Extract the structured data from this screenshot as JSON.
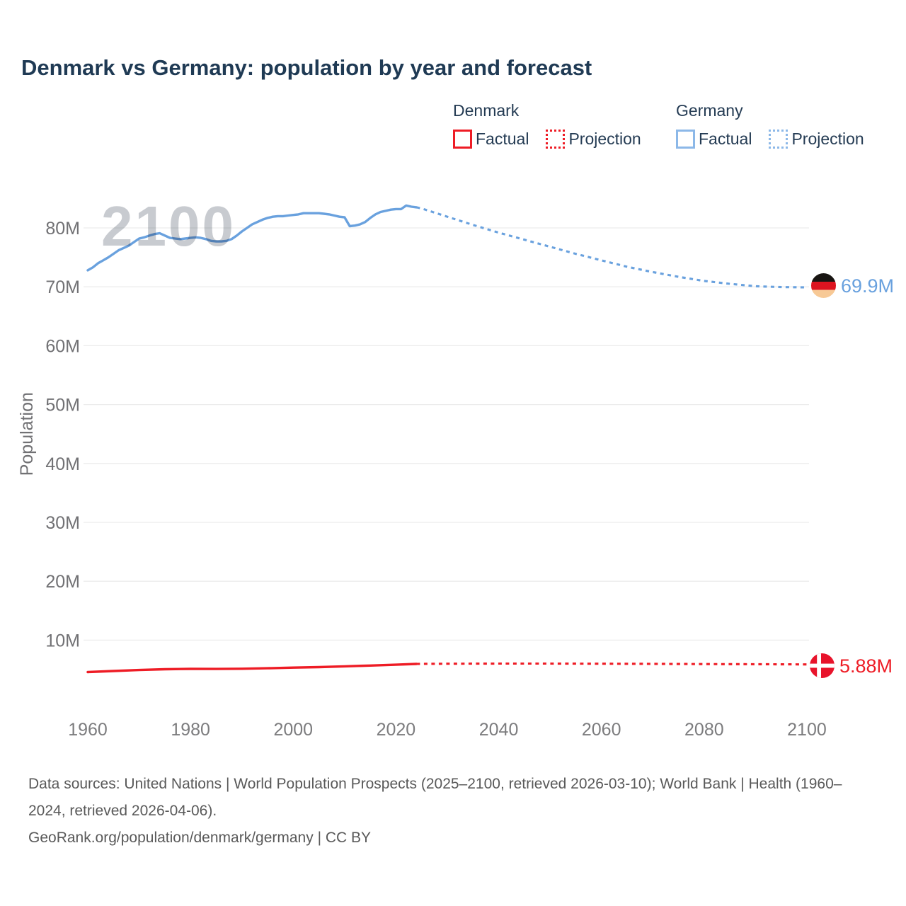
{
  "title": "Denmark vs Germany: population by year and forecast",
  "watermark": "2100",
  "legend": {
    "groups": [
      {
        "name": "Denmark",
        "swatch_color": "#ee1c25",
        "items": [
          {
            "label": "Factual",
            "style": "solid"
          },
          {
            "label": "Projection",
            "style": "dotted"
          }
        ]
      },
      {
        "name": "Germany",
        "swatch_color": "#8cb8e8",
        "items": [
          {
            "label": "Factual",
            "style": "solid"
          },
          {
            "label": "Projection",
            "style": "dotted"
          }
        ]
      }
    ]
  },
  "end_labels": [
    {
      "country": "Germany",
      "value": "69.9M",
      "color": "#69a1de"
    },
    {
      "country": "Denmark",
      "value": "5.88M",
      "color": "#ee1c25"
    }
  ],
  "colors": {
    "germany_line": "#69a1de",
    "denmark_line": "#ee1c25",
    "gridline": "#ececec",
    "title": "#1f3a54",
    "tick_label": "#717174",
    "watermark": "#c8cbd0",
    "footer_text": "#595959"
  },
  "chart_data": {
    "type": "line",
    "title": "Denmark vs Germany: population by year and forecast",
    "xlabel": "",
    "ylabel": "Population",
    "x_ticks": [
      1960,
      1980,
      2000,
      2020,
      2040,
      2060,
      2080,
      2100
    ],
    "y_ticks": [
      10,
      20,
      30,
      40,
      50,
      60,
      70,
      80
    ],
    "y_tick_suffix": "M",
    "xlim": [
      1959,
      2103
    ],
    "ylim": [
      4,
      86
    ],
    "grid": "horizontal-only",
    "legend_position": "top-right",
    "series": [
      {
        "name": "Germany Factual",
        "color": "#69a1de",
        "style": "solid",
        "points": [
          [
            1960,
            72.8
          ],
          [
            1961,
            73.3
          ],
          [
            1962,
            74.0
          ],
          [
            1963,
            74.5
          ],
          [
            1964,
            75.0
          ],
          [
            1965,
            75.6
          ],
          [
            1966,
            76.2
          ],
          [
            1967,
            76.6
          ],
          [
            1968,
            77.0
          ],
          [
            1969,
            77.6
          ],
          [
            1970,
            78.2
          ],
          [
            1971,
            78.4
          ],
          [
            1972,
            78.7
          ],
          [
            1973,
            78.95
          ],
          [
            1974,
            79.1
          ],
          [
            1975,
            78.7
          ],
          [
            1976,
            78.3
          ],
          [
            1977,
            78.2
          ],
          [
            1978,
            78.1
          ],
          [
            1979,
            78.2
          ],
          [
            1980,
            78.3
          ],
          [
            1981,
            78.4
          ],
          [
            1982,
            78.3
          ],
          [
            1983,
            78.1
          ],
          [
            1984,
            77.8
          ],
          [
            1985,
            77.7
          ],
          [
            1986,
            77.7
          ],
          [
            1987,
            77.8
          ],
          [
            1988,
            78.1
          ],
          [
            1989,
            78.7
          ],
          [
            1990,
            79.4
          ],
          [
            1991,
            80.0
          ],
          [
            1992,
            80.6
          ],
          [
            1993,
            81.0
          ],
          [
            1994,
            81.4
          ],
          [
            1995,
            81.7
          ],
          [
            1996,
            81.9
          ],
          [
            1997,
            82.0
          ],
          [
            1998,
            82.0
          ],
          [
            1999,
            82.1
          ],
          [
            2000,
            82.2
          ],
          [
            2001,
            82.3
          ],
          [
            2002,
            82.5
          ],
          [
            2003,
            82.5
          ],
          [
            2004,
            82.5
          ],
          [
            2005,
            82.5
          ],
          [
            2006,
            82.4
          ],
          [
            2007,
            82.3
          ],
          [
            2008,
            82.1
          ],
          [
            2009,
            81.9
          ],
          [
            2010,
            81.8
          ],
          [
            2011,
            80.3
          ],
          [
            2012,
            80.4
          ],
          [
            2013,
            80.6
          ],
          [
            2014,
            81.0
          ],
          [
            2015,
            81.7
          ],
          [
            2016,
            82.3
          ],
          [
            2017,
            82.7
          ],
          [
            2018,
            82.9
          ],
          [
            2019,
            83.1
          ],
          [
            2020,
            83.2
          ],
          [
            2021,
            83.2
          ],
          [
            2022,
            83.8
          ],
          [
            2023,
            83.6
          ],
          [
            2024,
            83.5
          ]
        ]
      },
      {
        "name": "Germany Projection",
        "color": "#69a1de",
        "style": "dotted",
        "points": [
          [
            2025,
            83.3
          ],
          [
            2030,
            81.9
          ],
          [
            2035,
            80.5
          ],
          [
            2040,
            79.2
          ],
          [
            2045,
            78.0
          ],
          [
            2050,
            76.8
          ],
          [
            2055,
            75.6
          ],
          [
            2060,
            74.5
          ],
          [
            2065,
            73.4
          ],
          [
            2070,
            72.5
          ],
          [
            2075,
            71.7
          ],
          [
            2080,
            71.0
          ],
          [
            2085,
            70.5
          ],
          [
            2090,
            70.1
          ],
          [
            2095,
            69.95
          ],
          [
            2100,
            69.9
          ]
        ]
      },
      {
        "name": "Denmark Factual",
        "color": "#ee1c25",
        "style": "solid",
        "points": [
          [
            1960,
            4.58
          ],
          [
            1965,
            4.76
          ],
          [
            1970,
            4.93
          ],
          [
            1975,
            5.06
          ],
          [
            1980,
            5.12
          ],
          [
            1985,
            5.11
          ],
          [
            1990,
            5.14
          ],
          [
            1995,
            5.23
          ],
          [
            2000,
            5.34
          ],
          [
            2005,
            5.42
          ],
          [
            2010,
            5.55
          ],
          [
            2015,
            5.68
          ],
          [
            2020,
            5.83
          ],
          [
            2024,
            5.96
          ]
        ]
      },
      {
        "name": "Denmark Projection",
        "color": "#ee1c25",
        "style": "dotted",
        "points": [
          [
            2025,
            5.97
          ],
          [
            2030,
            6.0
          ],
          [
            2040,
            6.02
          ],
          [
            2050,
            6.02
          ],
          [
            2060,
            6.0
          ],
          [
            2070,
            5.97
          ],
          [
            2080,
            5.94
          ],
          [
            2090,
            5.91
          ],
          [
            2100,
            5.88
          ]
        ]
      }
    ],
    "end_annotations": [
      {
        "series": "Germany Projection",
        "label": "69.9M",
        "flag": "germany"
      },
      {
        "series": "Denmark Projection",
        "label": "5.88M",
        "flag": "denmark"
      }
    ]
  },
  "footer": {
    "line1": "Data sources: United Nations | World Population Prospects (2025–2100, retrieved 2026-03-10); World Bank | Health (1960–2024, retrieved 2026-04-06).",
    "line2": "GeoRank.org/population/denmark/germany | CC BY"
  }
}
